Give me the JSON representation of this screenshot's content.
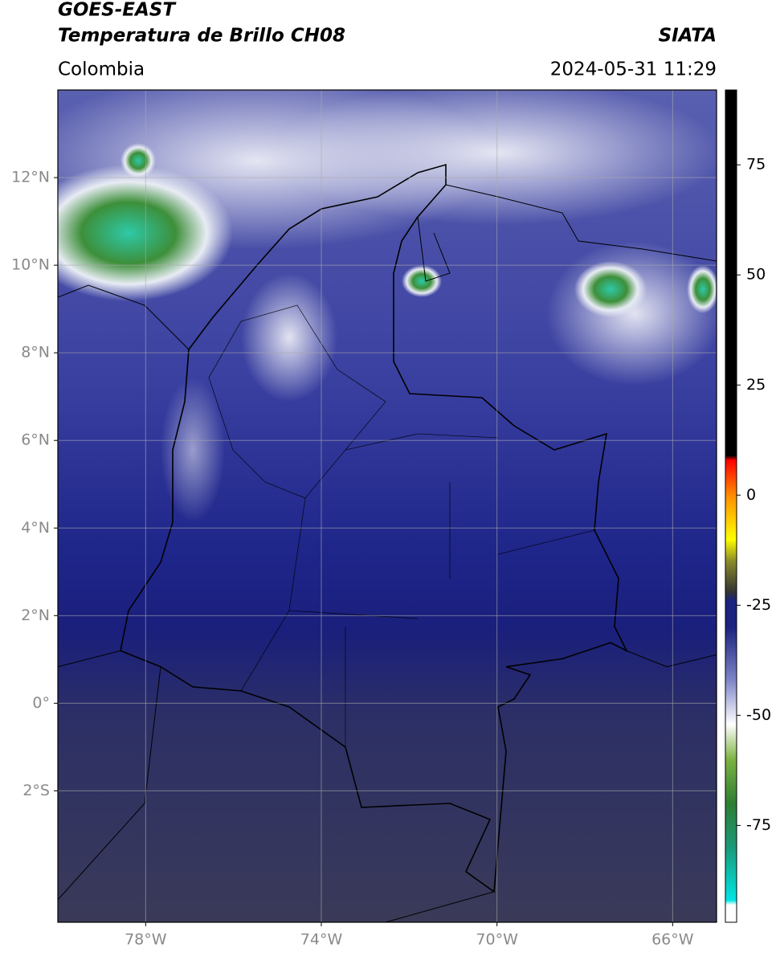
{
  "chart_data": {
    "type": "map",
    "title": "GOES-EAST",
    "subtitle": "Temperatura de Brillo CH08",
    "source": "SIATA",
    "region": "Colombia",
    "timestamp": "2024-05-31 11:29",
    "xlim": [
      -80,
      -65
    ],
    "ylim": [
      -5,
      14
    ],
    "xticks": [
      {
        "value": -78,
        "label": "78°W"
      },
      {
        "value": -74,
        "label": "74°W"
      },
      {
        "value": -70,
        "label": "70°W"
      },
      {
        "value": -66,
        "label": "66°W"
      }
    ],
    "yticks": [
      {
        "value": -2,
        "label": "2°S"
      },
      {
        "value": 0,
        "label": "0°"
      },
      {
        "value": 2,
        "label": "2°N"
      },
      {
        "value": 4,
        "label": "4°N"
      },
      {
        "value": 6,
        "label": "6°N"
      },
      {
        "value": 8,
        "label": "8°N"
      },
      {
        "value": 10,
        "label": "10°N"
      },
      {
        "value": 12,
        "label": "12°N"
      }
    ],
    "grid": true,
    "colorbar": {
      "lim": [
        -97,
        92
      ],
      "ticks": [
        -75,
        -50,
        -25,
        0,
        25,
        50,
        75
      ],
      "colormap": [
        {
          "value": -97,
          "color": "#ffffff"
        },
        {
          "value": -93,
          "color": "#ffffff"
        },
        {
          "value": -92,
          "color": "#00e5e5"
        },
        {
          "value": -80,
          "color": "#1a9a7a"
        },
        {
          "value": -70,
          "color": "#2e7d32"
        },
        {
          "value": -60,
          "color": "#7cb342"
        },
        {
          "value": -52,
          "color": "#ffffff"
        },
        {
          "value": -42,
          "color": "#7f85c8"
        },
        {
          "value": -30,
          "color": "#1a237e"
        },
        {
          "value": -24,
          "color": "#1a237e"
        },
        {
          "value": -22,
          "color": "#333333"
        },
        {
          "value": -15,
          "color": "#8a8a2a"
        },
        {
          "value": -10,
          "color": "#ffff00"
        },
        {
          "value": 0,
          "color": "#ff8c00"
        },
        {
          "value": 8,
          "color": "#ff0000"
        },
        {
          "value": 9,
          "color": "#000000"
        },
        {
          "value": 92,
          "color": "#000000"
        }
      ]
    }
  }
}
